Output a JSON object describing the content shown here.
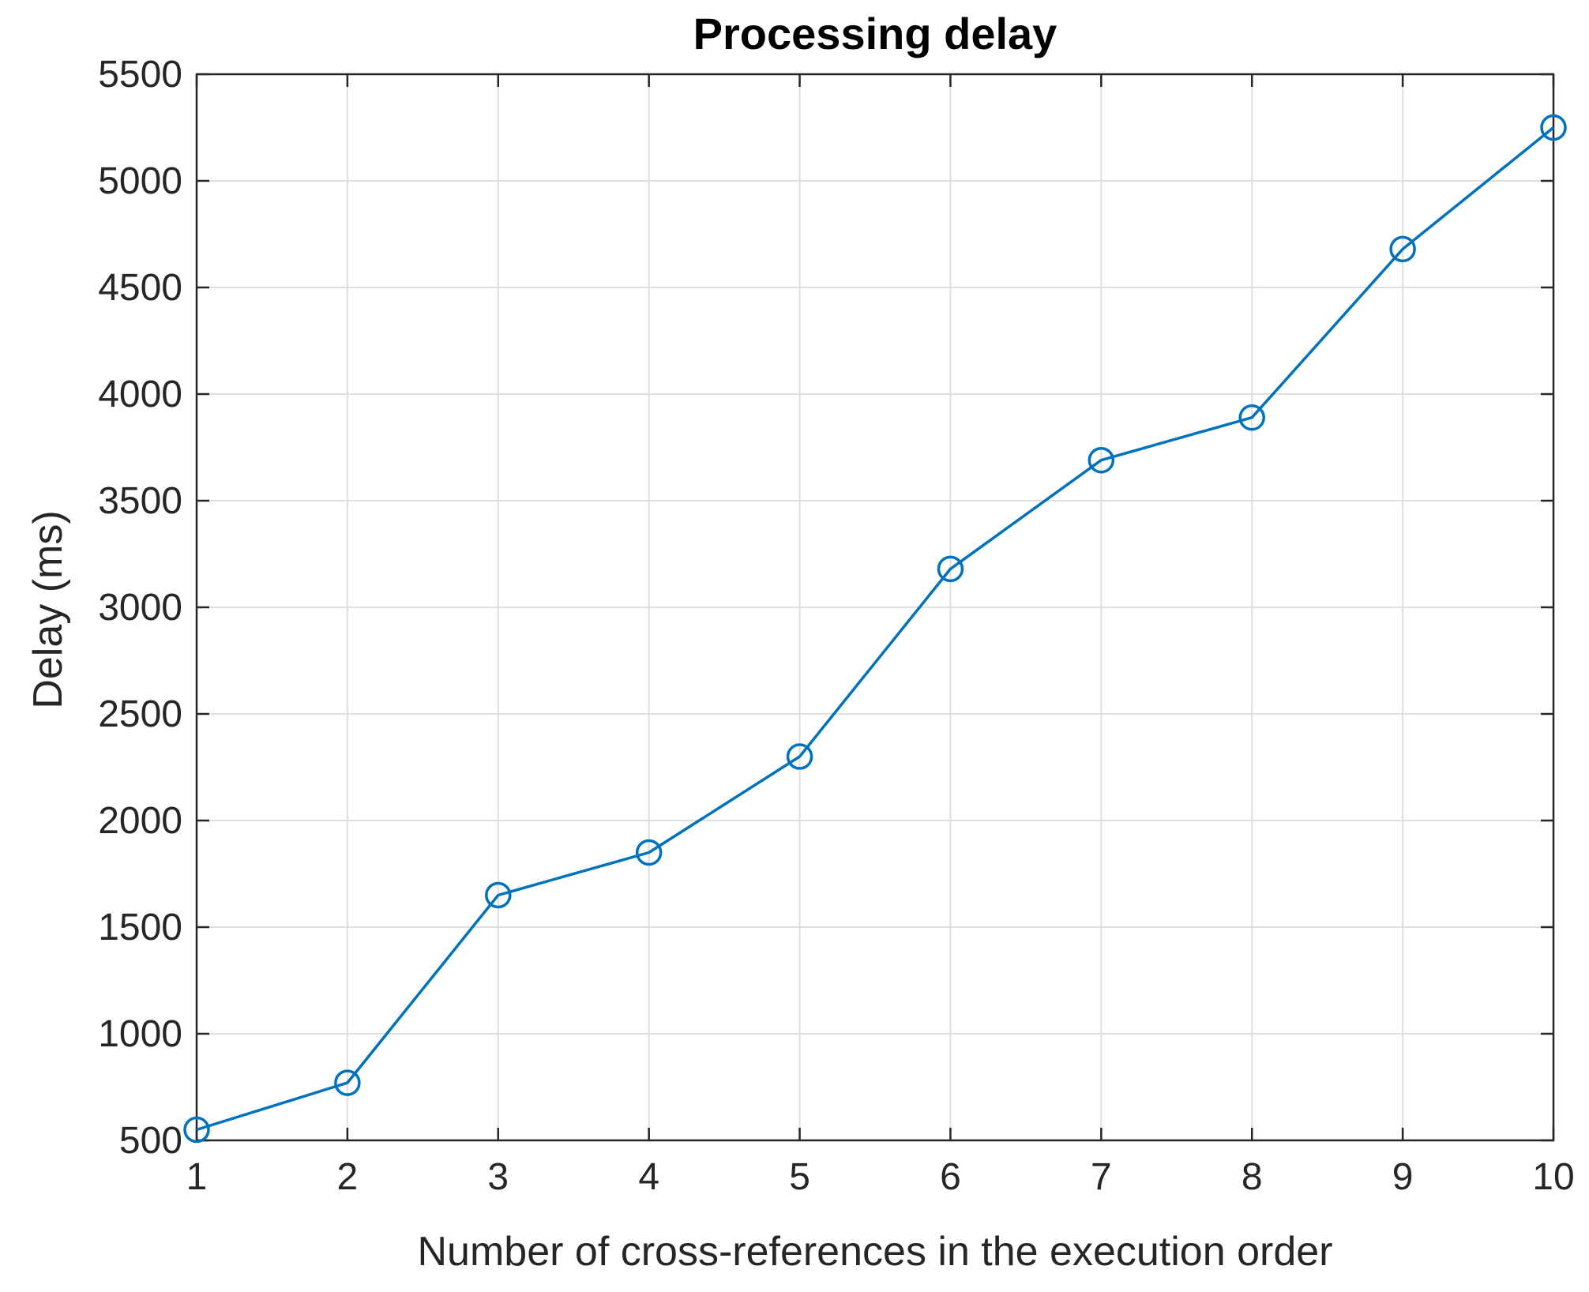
{
  "chart_data": {
    "type": "line",
    "title": "Processing delay",
    "xlabel": "Number of cross-references in the execution order",
    "ylabel": "Delay (ms)",
    "x": [
      1,
      2,
      3,
      4,
      5,
      6,
      7,
      8,
      9,
      10
    ],
    "series": [
      {
        "values": [
          550,
          770,
          1650,
          1850,
          2300,
          3180,
          3690,
          3890,
          4680,
          5250
        ],
        "color": "#0072BD",
        "marker": "circle"
      }
    ],
    "xlim": [
      1,
      10
    ],
    "ylim": [
      500,
      5500
    ],
    "xticks": [
      "1",
      "2",
      "3",
      "4",
      "5",
      "6",
      "7",
      "8",
      "9",
      "10"
    ],
    "yticks": [
      "500",
      "1000",
      "1500",
      "2000",
      "2500",
      "3000",
      "3500",
      "4000",
      "4500",
      "5000",
      "5500"
    ],
    "grid": true,
    "box": true
  }
}
